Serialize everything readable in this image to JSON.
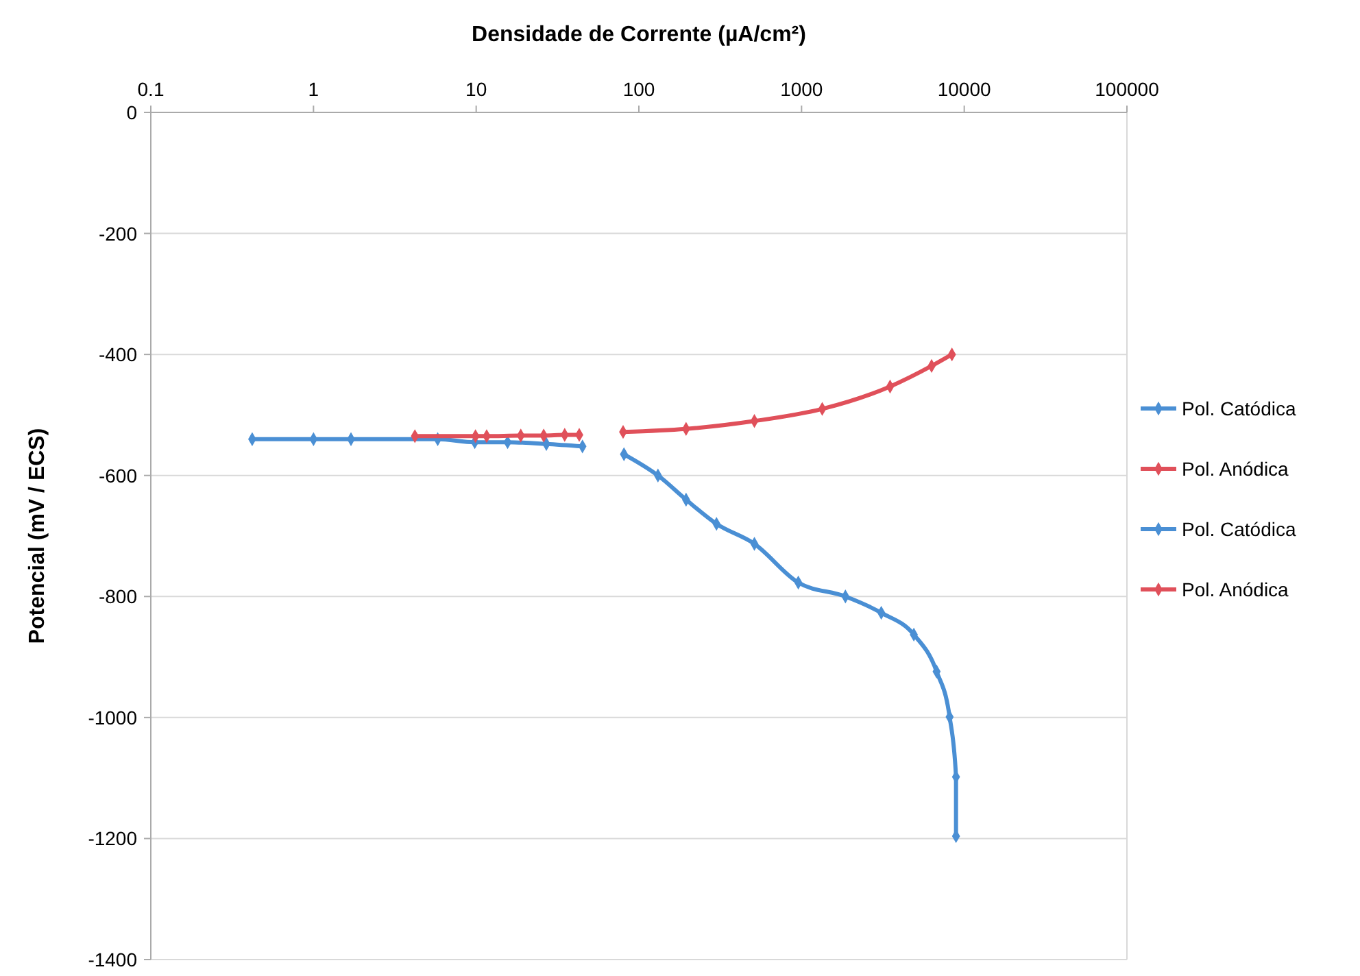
{
  "chart_data": {
    "type": "line",
    "xlabel": "Densidade de Corrente (µA/cm²)",
    "ylabel": "Potencial (mV / ECS)",
    "log": "x",
    "xlim": [
      0.1,
      100000
    ],
    "xticks": [
      0.1,
      1,
      10,
      100,
      1000,
      10000,
      100000
    ],
    "ylim": [
      -1400,
      0
    ],
    "yticks": [
      -1400,
      -1200,
      -1000,
      -800,
      -600,
      -400,
      -200,
      0
    ],
    "grid": "y",
    "legend": "right",
    "marker": "diamond",
    "line_style": "solid",
    "series": [
      {
        "name": "Pol. Catódica",
        "color": "#4a8fd4",
        "x": [
          0.42,
          1,
          1.7,
          5.8,
          9.8,
          15.6,
          27,
          45
        ],
        "values": [
          -540,
          -540,
          -540,
          -540,
          -545,
          -545,
          -548,
          -552
        ]
      },
      {
        "name": "Pol. Anódica",
        "color": "#e0505a",
        "x": [
          4.2,
          9.9,
          11.6,
          18.8,
          26,
          35,
          43
        ],
        "values": [
          -535,
          -535,
          -535,
          -534,
          -534,
          -533,
          -533
        ]
      },
      {
        "name": "Pol. Catódica",
        "color": "#4a8fd4",
        "x": [
          81,
          131,
          195,
          300,
          513,
          955,
          1860,
          3090,
          4900,
          6760,
          8130,
          8900,
          8900
        ],
        "values": [
          -565,
          -600,
          -640,
          -680,
          -713,
          -777,
          -800,
          -827,
          -863,
          -924,
          -999,
          -1098,
          -1196
        ]
      },
      {
        "name": "Pol. Anódica",
        "color": "#e0505a",
        "x": [
          80,
          195,
          513,
          1340,
          3500,
          6300,
          8400
        ],
        "values": [
          -528,
          -523,
          -510,
          -490,
          -453,
          -419,
          -400
        ]
      }
    ]
  }
}
